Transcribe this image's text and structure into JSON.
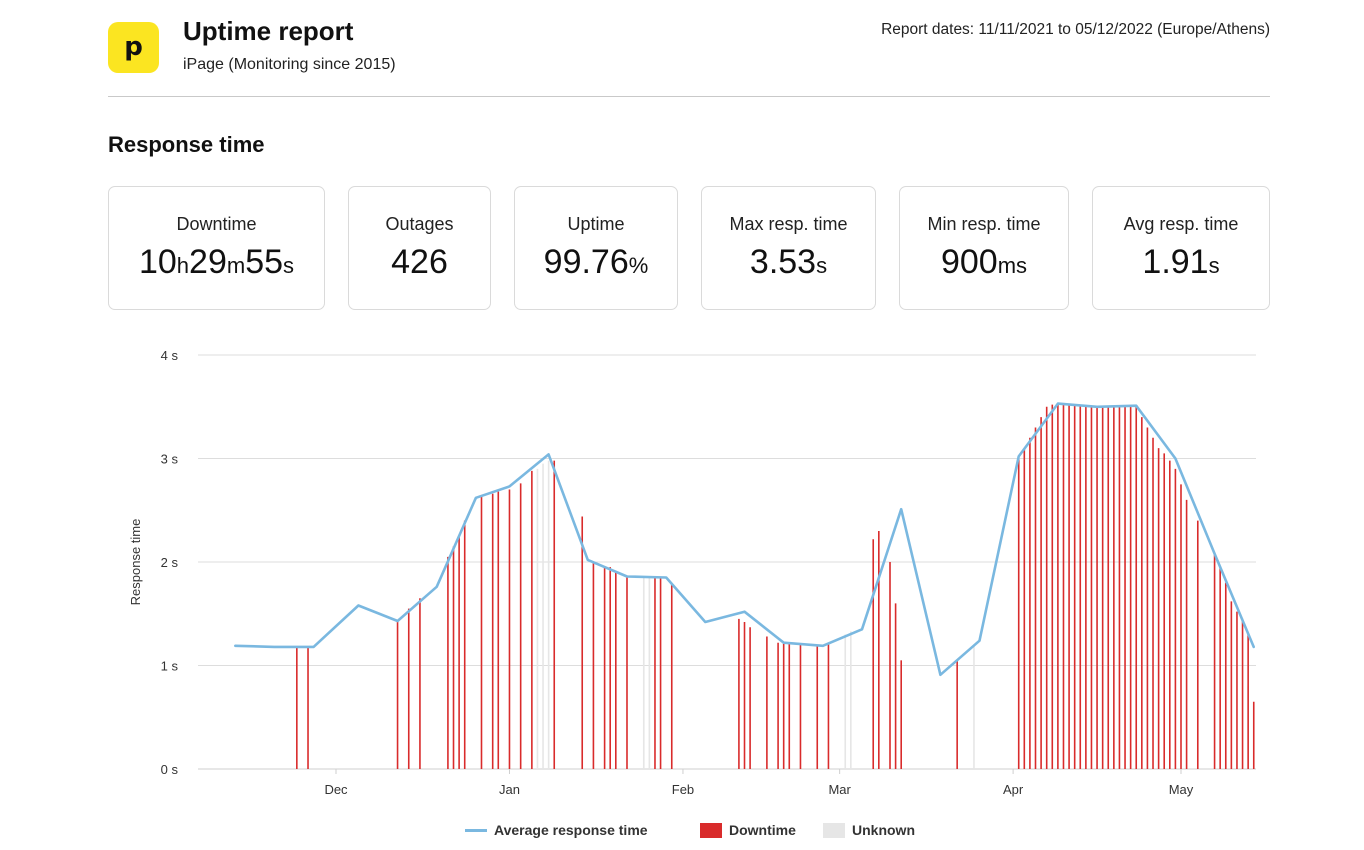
{
  "header": {
    "logo_letter": "p",
    "title": "Uptime report",
    "subtitle": "iPage (Monitoring since 2015)",
    "report_dates": "Report dates: 11/11/2021 to 05/12/2022 (Europe/Athens)"
  },
  "section_title": "Response time",
  "stats": {
    "downtime": {
      "label": "Downtime",
      "h": "10",
      "h_unit": "h",
      "m": "29",
      "m_unit": "m",
      "s": "55",
      "s_unit": "s"
    },
    "outages": {
      "label": "Outages",
      "value": "426"
    },
    "uptime": {
      "label": "Uptime",
      "value": "99.76",
      "unit": "%"
    },
    "max_resp": {
      "label": "Max resp. time",
      "value": "3.53",
      "unit": "s"
    },
    "min_resp": {
      "label": "Min resp. time",
      "value": "900",
      "unit": "ms"
    },
    "avg_resp": {
      "label": "Avg resp. time",
      "value": "1.91",
      "unit": "s"
    }
  },
  "legend": {
    "average": "Average response time",
    "downtime": "Downtime",
    "unknown": "Unknown"
  },
  "colors": {
    "line": "#7ab8e0",
    "downtime": "#d92b2b",
    "unknown": "#e6e6e6",
    "grid": "#dddddd",
    "logo": "#fbe521"
  },
  "chart_data": {
    "type": "line",
    "ylabel": "Response time",
    "y_ticks": [
      "0 s",
      "1 s",
      "2 s",
      "3 s",
      "4 s"
    ],
    "ylim": [
      0,
      4
    ],
    "x_start": "2021-11-11",
    "x_end": "2022-05-12",
    "x_ticks": [
      {
        "label": "Dec",
        "date": "2021-12-01"
      },
      {
        "label": "Jan",
        "date": "2022-01-01"
      },
      {
        "label": "Feb",
        "date": "2022-02-01"
      },
      {
        "label": "Mar",
        "date": "2022-03-01"
      },
      {
        "label": "Apr",
        "date": "2022-04-01"
      },
      {
        "label": "May",
        "date": "2022-05-01"
      }
    ],
    "series": [
      {
        "name": "Average response time",
        "points": [
          [
            "2021-11-13",
            1.19
          ],
          [
            "2021-11-20",
            1.18
          ],
          [
            "2021-11-27",
            1.18
          ],
          [
            "2021-12-05",
            1.58
          ],
          [
            "2021-12-12",
            1.43
          ],
          [
            "2021-12-19",
            1.76
          ],
          [
            "2021-12-26",
            2.62
          ],
          [
            "2022-01-01",
            2.73
          ],
          [
            "2022-01-08",
            3.04
          ],
          [
            "2022-01-15",
            2.02
          ],
          [
            "2022-01-22",
            1.86
          ],
          [
            "2022-01-29",
            1.85
          ],
          [
            "2022-02-05",
            1.42
          ],
          [
            "2022-02-12",
            1.52
          ],
          [
            "2022-02-19",
            1.22
          ],
          [
            "2022-02-26",
            1.19
          ],
          [
            "2022-03-05",
            1.35
          ],
          [
            "2022-03-12",
            2.51
          ],
          [
            "2022-03-19",
            0.91
          ],
          [
            "2022-03-26",
            1.24
          ],
          [
            "2022-04-02",
            3.02
          ],
          [
            "2022-04-09",
            3.53
          ],
          [
            "2022-04-16",
            3.5
          ],
          [
            "2022-04-23",
            3.51
          ],
          [
            "2022-04-30",
            3.0
          ],
          [
            "2022-05-07",
            2.08
          ],
          [
            "2022-05-14",
            1.18
          ]
        ]
      }
    ],
    "downtime_bars": [
      [
        "2021-11-24",
        1.18
      ],
      [
        "2021-11-26",
        1.18
      ],
      [
        "2021-12-12",
        1.43
      ],
      [
        "2021-12-14",
        1.55
      ],
      [
        "2021-12-16",
        1.65
      ],
      [
        "2021-12-21",
        2.05
      ],
      [
        "2021-12-22",
        2.15
      ],
      [
        "2021-12-23",
        2.25
      ],
      [
        "2021-12-24",
        2.4
      ],
      [
        "2021-12-27",
        2.63
      ],
      [
        "2021-12-29",
        2.66
      ],
      [
        "2021-12-30",
        2.68
      ],
      [
        "2022-01-01",
        2.7
      ],
      [
        "2022-01-03",
        2.76
      ],
      [
        "2022-01-05",
        2.88
      ],
      [
        "2022-01-09",
        2.98
      ],
      [
        "2022-01-14",
        2.44
      ],
      [
        "2022-01-16",
        2.0
      ],
      [
        "2022-01-18",
        1.96
      ],
      [
        "2022-01-19",
        1.95
      ],
      [
        "2022-01-20",
        1.9
      ],
      [
        "2022-01-22",
        1.86
      ],
      [
        "2022-01-27",
        1.85
      ],
      [
        "2022-01-28",
        1.85
      ],
      [
        "2022-01-30",
        1.78
      ],
      [
        "2022-02-11",
        1.45
      ],
      [
        "2022-02-12",
        1.42
      ],
      [
        "2022-02-13",
        1.37
      ],
      [
        "2022-02-16",
        1.28
      ],
      [
        "2022-02-18",
        1.22
      ],
      [
        "2022-02-19",
        1.21
      ],
      [
        "2022-02-20",
        1.21
      ],
      [
        "2022-02-22",
        1.2
      ],
      [
        "2022-02-25",
        1.19
      ],
      [
        "2022-02-27",
        1.22
      ],
      [
        "2022-03-07",
        2.22
      ],
      [
        "2022-03-08",
        2.3
      ],
      [
        "2022-03-10",
        2.0
      ],
      [
        "2022-03-11",
        1.6
      ],
      [
        "2022-03-12",
        1.05
      ],
      [
        "2022-03-22",
        1.05
      ],
      [
        "2022-04-02",
        3.02
      ],
      [
        "2022-04-03",
        3.1
      ],
      [
        "2022-04-04",
        3.2
      ],
      [
        "2022-04-05",
        3.3
      ],
      [
        "2022-04-06",
        3.4
      ],
      [
        "2022-04-07",
        3.5
      ],
      [
        "2022-04-08",
        3.52
      ],
      [
        "2022-04-09",
        3.53
      ],
      [
        "2022-04-10",
        3.52
      ],
      [
        "2022-04-11",
        3.52
      ],
      [
        "2022-04-12",
        3.51
      ],
      [
        "2022-04-13",
        3.51
      ],
      [
        "2022-04-14",
        3.5
      ],
      [
        "2022-04-15",
        3.5
      ],
      [
        "2022-04-16",
        3.5
      ],
      [
        "2022-04-17",
        3.5
      ],
      [
        "2022-04-18",
        3.5
      ],
      [
        "2022-04-19",
        3.5
      ],
      [
        "2022-04-20",
        3.51
      ],
      [
        "2022-04-21",
        3.51
      ],
      [
        "2022-04-22",
        3.51
      ],
      [
        "2022-04-23",
        3.51
      ],
      [
        "2022-04-24",
        3.4
      ],
      [
        "2022-04-25",
        3.3
      ],
      [
        "2022-04-26",
        3.2
      ],
      [
        "2022-04-27",
        3.1
      ],
      [
        "2022-04-28",
        3.05
      ],
      [
        "2022-04-29",
        2.98
      ],
      [
        "2022-04-30",
        2.9
      ],
      [
        "2022-05-01",
        2.75
      ],
      [
        "2022-05-02",
        2.6
      ],
      [
        "2022-05-04",
        2.4
      ],
      [
        "2022-05-07",
        2.08
      ],
      [
        "2022-05-08",
        1.95
      ],
      [
        "2022-05-09",
        1.8
      ],
      [
        "2022-05-10",
        1.62
      ],
      [
        "2022-05-11",
        1.52
      ],
      [
        "2022-05-12",
        1.45
      ],
      [
        "2022-05-13",
        1.3
      ],
      [
        "2022-05-14",
        0.65
      ]
    ],
    "unknown_bars": [
      [
        "2022-01-06",
        2.9
      ],
      [
        "2022-01-07",
        2.95
      ],
      [
        "2022-01-08",
        2.98
      ],
      [
        "2022-01-25",
        1.85
      ],
      [
        "2022-01-26",
        1.85
      ],
      [
        "2022-03-02",
        1.3
      ],
      [
        "2022-03-03",
        1.33
      ],
      [
        "2022-03-25",
        1.2
      ],
      [
        "2022-05-13",
        0.8
      ]
    ]
  }
}
